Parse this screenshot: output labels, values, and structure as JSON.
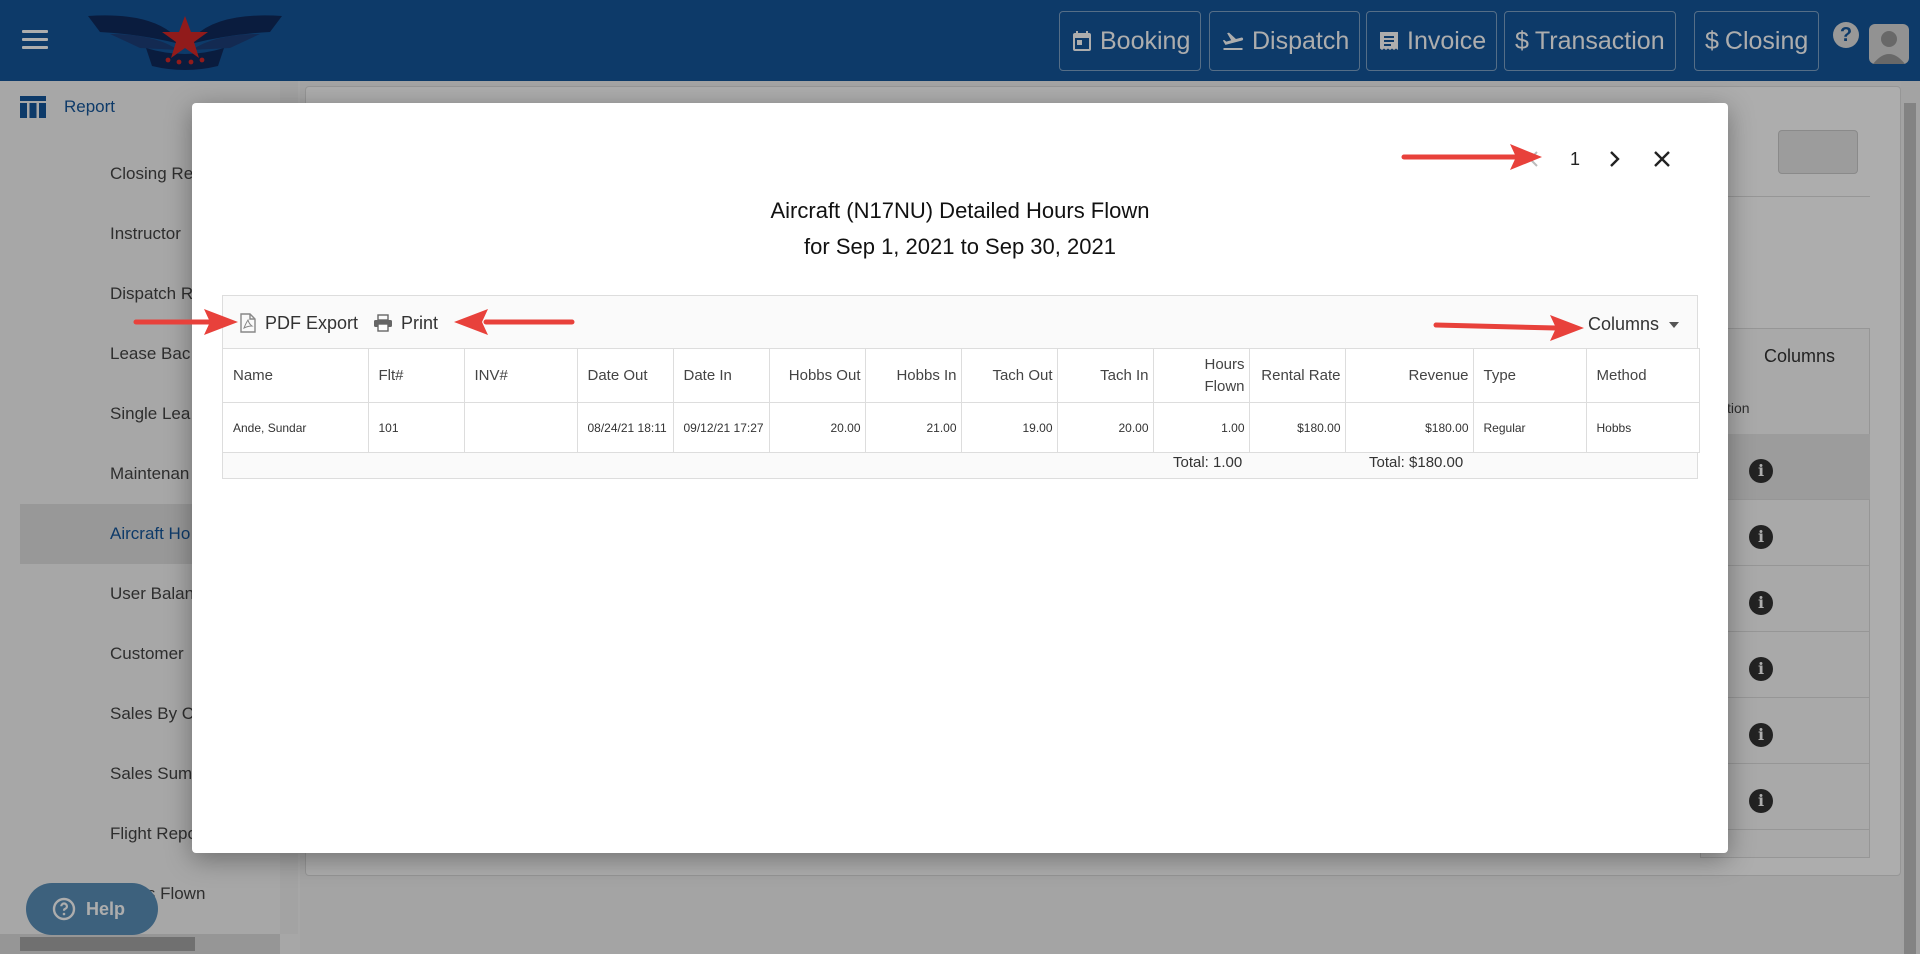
{
  "topbar": {
    "nav": [
      {
        "label": "Booking",
        "icon": "calendar-icon"
      },
      {
        "label": "Dispatch",
        "icon": "plane-departure-icon"
      },
      {
        "label": "Invoice",
        "icon": "receipt-icon"
      },
      {
        "label": "Transaction",
        "icon": "dollar-icon",
        "prefix": "$"
      },
      {
        "label": "Closing",
        "icon": "dollar-icon",
        "prefix": "$"
      }
    ],
    "help_symbol": "?"
  },
  "sidebar": {
    "header": "Report",
    "items": [
      {
        "label": "Closing Re"
      },
      {
        "label": "Instructor"
      },
      {
        "label": "Dispatch R"
      },
      {
        "label": "Lease Bac"
      },
      {
        "label": "Single Lea"
      },
      {
        "label": "Maintenan"
      },
      {
        "label": "Aircraft Ho"
      },
      {
        "label": "User Balan"
      },
      {
        "label": "Customer"
      },
      {
        "label": "Sales By C"
      },
      {
        "label": "Sales Sum"
      },
      {
        "label": "Flight Repo"
      },
      {
        "label": "Hours Flown"
      }
    ],
    "help_label": "Help"
  },
  "background": {
    "columns_label": "Columns",
    "action_header": "ction",
    "info_symbol": "i"
  },
  "modal": {
    "page_number": "1",
    "title_line1": "Aircraft (N17NU) Detailed Hours Flown",
    "title_line2": "for Sep 1, 2021 to Sep 30, 2021",
    "toolbar": {
      "pdf_label": "PDF Export",
      "print_label": "Print",
      "columns_label": "Columns"
    },
    "table": {
      "headers": [
        "Name",
        "Flt#",
        "INV#",
        "Date Out",
        "Date In",
        "Hobbs Out",
        "Hobbs In",
        "Tach Out",
        "Tach In",
        "Hours Flown",
        "Rental Rate",
        "Revenue",
        "Type",
        "Method"
      ],
      "rows": [
        [
          "Ande, Sundar",
          "101",
          "",
          "08/24/21 18:11",
          "09/12/21 17:27",
          "20.00",
          "21.00",
          "19.00",
          "20.00",
          "1.00",
          "$180.00",
          "$180.00",
          "Regular",
          "Hobbs"
        ]
      ],
      "total_hours": "Total: 1.00",
      "total_revenue": "Total: $180.00"
    }
  },
  "colors": {
    "brand": "#14569b",
    "arrow": "#e8413b"
  }
}
